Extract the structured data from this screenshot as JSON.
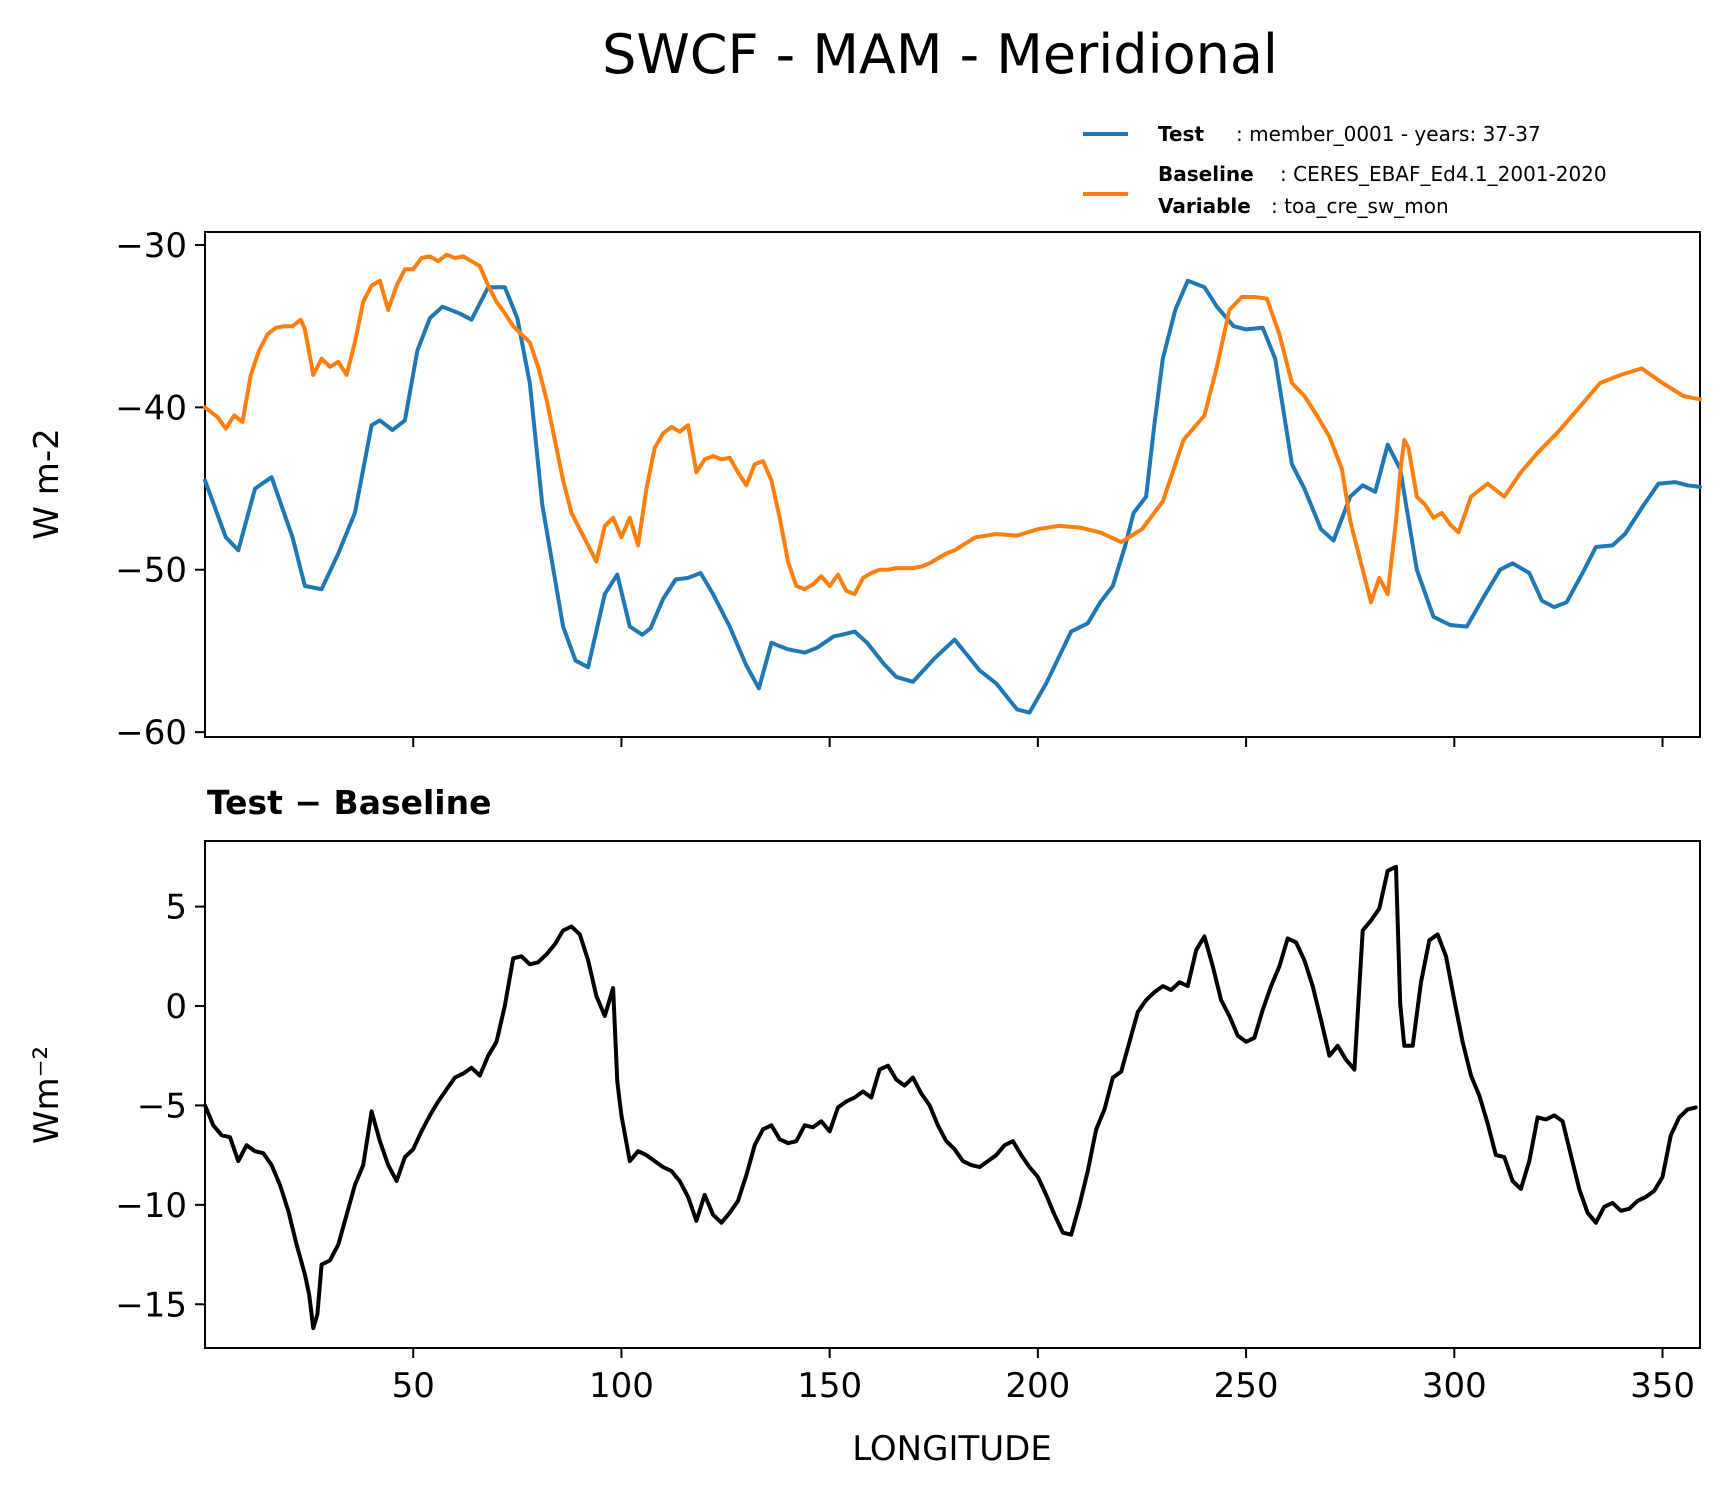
{
  "chart_data": [
    {
      "type": "line",
      "title": "SWCF - MAM - Meridional",
      "xlabel": "",
      "ylabel": "W m-2",
      "xlim": [
        0,
        359
      ],
      "ylim": [
        -60.3,
        -29.2
      ],
      "yticks": [
        -30,
        -40,
        -50,
        -60
      ],
      "ytick_labels": [
        "−30",
        "−40",
        "−50",
        "−60"
      ],
      "xticks": [
        50,
        100,
        150,
        200,
        250,
        300,
        350
      ],
      "legend": [
        {
          "key": "Test",
          "text": "member_0001 - years: 37-37",
          "color": "#1f77b4"
        },
        {
          "key": "Baseline",
          "text": "CERES_EBAF_Ed4.1_2001-2020",
          "color": "#ff7f0e"
        },
        {
          "key": "Variable",
          "text": "toa_cre_sw_mon",
          "color": ""
        }
      ],
      "series": [
        {
          "name": "Test",
          "color": "#1f77b4",
          "x": [
            0,
            5,
            8,
            12,
            16,
            21,
            24,
            28,
            32,
            36,
            40,
            42,
            45,
            48,
            51,
            54,
            57,
            61,
            64,
            68,
            72,
            75,
            78,
            81,
            86,
            89,
            92,
            96,
            99,
            102,
            105,
            107,
            110,
            113,
            116,
            119,
            122,
            126,
            130,
            133,
            136,
            140,
            144,
            147,
            151,
            153,
            156,
            159,
            163,
            166,
            170,
            175,
            180,
            186,
            190,
            195,
            198,
            202,
            208,
            212,
            215,
            218,
            221,
            223,
            226,
            228,
            230,
            233,
            236,
            240,
            243,
            247,
            250,
            254,
            257,
            261,
            264,
            268,
            271,
            275,
            278,
            281,
            284,
            287,
            291,
            295,
            299,
            303,
            307,
            311,
            314,
            318,
            321,
            324,
            327,
            331,
            334,
            338,
            341,
            345,
            349,
            353,
            356,
            359
          ],
          "y": [
            -44.5,
            -48,
            -48.8,
            -45,
            -44.3,
            -48,
            -51,
            -51.2,
            -49,
            -46.5,
            -41.1,
            -40.8,
            -41.4,
            -40.8,
            -36.5,
            -34.5,
            -33.8,
            -34.2,
            -34.6,
            -32.6,
            -32.6,
            -34.5,
            -38.5,
            -46,
            -53.5,
            -55.6,
            -56,
            -51.5,
            -50.3,
            -53.5,
            -54,
            -53.6,
            -51.8,
            -50.6,
            -50.5,
            -50.2,
            -51.5,
            -53.5,
            -55.9,
            -57.3,
            -54.5,
            -54.9,
            -55.1,
            -54.8,
            -54.1,
            -54,
            -53.8,
            -54.5,
            -55.8,
            -56.6,
            -56.9,
            -55.5,
            -54.3,
            -56.2,
            -57,
            -58.6,
            -58.8,
            -57,
            -53.8,
            -53.3,
            -52,
            -51,
            -48.5,
            -46.5,
            -45.5,
            -41,
            -37,
            -34,
            -32.2,
            -32.6,
            -33.8,
            -35,
            -35.2,
            -35.1,
            -37,
            -43.5,
            -45,
            -47.5,
            -48.2,
            -45.5,
            -44.8,
            -45.2,
            -42.3,
            -43.8,
            -50,
            -52.9,
            -53.4,
            -53.5,
            -51.7,
            -50,
            -49.6,
            -50.2,
            -51.9,
            -52.3,
            -52,
            -50.1,
            -48.6,
            -48.5,
            -47.8,
            -46.2,
            -44.7,
            -44.6,
            -44.8,
            -44.9
          ],
          "description": "Test series"
        },
        {
          "name": "Baseline",
          "color": "#ff7f0e",
          "x": [
            0,
            3,
            5,
            7,
            9,
            11,
            13,
            15,
            17,
            19,
            21,
            23,
            24,
            26,
            28,
            30,
            32,
            34,
            36,
            38,
            40,
            42,
            44,
            46,
            48,
            50,
            52,
            54,
            56,
            58,
            60,
            62,
            64,
            66,
            68,
            70,
            72,
            74,
            76,
            78,
            80,
            82,
            84,
            86,
            88,
            90,
            92,
            94,
            96,
            98,
            100,
            102,
            104,
            106,
            108,
            110,
            112,
            114,
            116,
            118,
            120,
            122,
            124,
            126,
            128,
            130,
            132,
            134,
            136,
            138,
            140,
            142,
            144,
            146,
            148,
            150,
            152,
            154,
            156,
            158,
            160,
            162,
            164,
            166,
            168,
            170,
            172,
            174,
            176,
            178,
            180,
            185,
            190,
            195,
            200,
            205,
            210,
            215,
            220,
            225,
            230,
            235,
            240,
            243,
            246,
            249,
            252,
            255,
            258,
            261,
            264,
            267,
            270,
            273,
            275,
            278,
            280,
            282,
            284,
            286,
            287,
            288,
            289,
            291,
            293,
            295,
            297,
            299,
            301,
            304,
            308,
            312,
            316,
            320,
            325,
            330,
            335,
            340,
            345,
            350,
            355,
            359
          ],
          "y": [
            -40,
            -40.6,
            -41.3,
            -40.5,
            -40.9,
            -38,
            -36.5,
            -35.5,
            -35.1,
            -35,
            -35,
            -34.6,
            -35.2,
            -38,
            -37,
            -37.5,
            -37.2,
            -38,
            -36,
            -33.5,
            -32.5,
            -32.2,
            -34,
            -32.5,
            -31.5,
            -31.5,
            -30.8,
            -30.7,
            -31,
            -30.6,
            -30.8,
            -30.7,
            -31,
            -31.3,
            -32.5,
            -33.5,
            -34.2,
            -35,
            -35.5,
            -36,
            -37.5,
            -39.5,
            -42,
            -44.5,
            -46.5,
            -47.5,
            -48.5,
            -49.5,
            -47.3,
            -46.8,
            -48,
            -46.8,
            -48.5,
            -45,
            -42.5,
            -41.6,
            -41.2,
            -41.5,
            -41.1,
            -44,
            -43.2,
            -43,
            -43.2,
            -43.1,
            -44,
            -44.8,
            -43.5,
            -43.3,
            -44.5,
            -46.8,
            -49.5,
            -51,
            -51.2,
            -50.9,
            -50.4,
            -51,
            -50.3,
            -51.3,
            -51.5,
            -50.5,
            -50.2,
            -50,
            -50,
            -49.9,
            -49.9,
            -49.9,
            -49.8,
            -49.6,
            -49.3,
            -49,
            -48.8,
            -48,
            -47.8,
            -47.9,
            -47.5,
            -47.3,
            -47.4,
            -47.7,
            -48.3,
            -47.5,
            -45.8,
            -42,
            -40.5,
            -37.5,
            -34,
            -33.2,
            -33.2,
            -33.3,
            -35.5,
            -38.5,
            -39.3,
            -40.5,
            -41.8,
            -43.8,
            -47,
            -50,
            -52,
            -50.5,
            -51.5,
            -47,
            -44,
            -42,
            -42.5,
            -45.5,
            -46,
            -46.8,
            -46.5,
            -47.2,
            -47.7,
            -45.5,
            -44.7,
            -45.5,
            -44,
            -42.8,
            -41.5,
            -40,
            -38.5,
            -38,
            -37.6,
            -38.5,
            -39.3,
            -39.5
          ],
          "description": "Baseline series"
        }
      ]
    },
    {
      "type": "line",
      "title": "Test − Baseline",
      "xlabel": "LONGITUDE",
      "ylabel": "Wm⁻²",
      "xlim": [
        0,
        359
      ],
      "ylim": [
        -17.2,
        8.3
      ],
      "yticks": [
        5,
        0,
        -5,
        -10,
        -15
      ],
      "ytick_labels": [
        "5",
        "0",
        "−5",
        "−10",
        "−15"
      ],
      "xticks": [
        50,
        100,
        150,
        200,
        250,
        300,
        350
      ],
      "xtick_labels": [
        "50",
        "100",
        "150",
        "200",
        "250",
        "300",
        "350"
      ],
      "series": [
        {
          "name": "Test - Baseline",
          "color": "#000000",
          "x": [
            0,
            2,
            4,
            6,
            8,
            10,
            12,
            14,
            16,
            18,
            20,
            22,
            24,
            25,
            26,
            27,
            28,
            30,
            32,
            34,
            36,
            38,
            40,
            42,
            44,
            46,
            48,
            50,
            52,
            54,
            56,
            58,
            60,
            62,
            64,
            66,
            68,
            70,
            72,
            74,
            76,
            78,
            80,
            82,
            84,
            86,
            88,
            90,
            92,
            94,
            96,
            98,
            99,
            100,
            102,
            104,
            106,
            108,
            110,
            112,
            114,
            116,
            118,
            120,
            122,
            124,
            126,
            128,
            130,
            132,
            134,
            136,
            138,
            140,
            142,
            144,
            146,
            148,
            150,
            152,
            154,
            156,
            158,
            160,
            162,
            164,
            166,
            168,
            170,
            172,
            174,
            176,
            178,
            180,
            182,
            184,
            186,
            188,
            190,
            192,
            194,
            196,
            198,
            200,
            202,
            204,
            206,
            208,
            210,
            212,
            214,
            216,
            218,
            220,
            222,
            224,
            226,
            228,
            230,
            232,
            234,
            236,
            238,
            240,
            242,
            244,
            246,
            248,
            250,
            252,
            254,
            256,
            258,
            260,
            262,
            264,
            266,
            268,
            270,
            272,
            274,
            276,
            278,
            280,
            282,
            284,
            286,
            287,
            288,
            290,
            292,
            294,
            296,
            298,
            300,
            302,
            304,
            306,
            308,
            310,
            312,
            314,
            316,
            318,
            320,
            322,
            324,
            326,
            328,
            330,
            332,
            334,
            336,
            338,
            340,
            342,
            344,
            346,
            348,
            350,
            352,
            354,
            356,
            358
          ],
          "y": [
            -5,
            -6,
            -6.5,
            -6.6,
            -7.8,
            -7,
            -7.3,
            -7.4,
            -8,
            -9,
            -10.3,
            -12,
            -13.5,
            -14.5,
            -16.2,
            -15.5,
            -13,
            -12.8,
            -12,
            -10.5,
            -9,
            -8,
            -5.3,
            -6.8,
            -8,
            -8.8,
            -7.6,
            -7.2,
            -6.3,
            -5.5,
            -4.8,
            -4.2,
            -3.6,
            -3.4,
            -3.1,
            -3.5,
            -2.5,
            -1.8,
            0,
            2.4,
            2.5,
            2.1,
            2.2,
            2.6,
            3.1,
            3.8,
            4,
            3.6,
            2.3,
            0.5,
            -0.5,
            0.9,
            -3.8,
            -5.5,
            -7.8,
            -7.3,
            -7.5,
            -7.8,
            -8.1,
            -8.3,
            -8.8,
            -9.6,
            -10.8,
            -9.5,
            -10.5,
            -10.9,
            -10.4,
            -9.8,
            -8.5,
            -7,
            -6.2,
            -6,
            -6.7,
            -6.9,
            -6.8,
            -6,
            -6.1,
            -5.8,
            -6.3,
            -5.1,
            -4.8,
            -4.6,
            -4.3,
            -4.6,
            -3.2,
            -3,
            -3.7,
            -4,
            -3.6,
            -4.4,
            -5,
            -6,
            -6.8,
            -7.2,
            -7.8,
            -8,
            -8.1,
            -7.8,
            -7.5,
            -7,
            -6.8,
            -7.5,
            -8.1,
            -8.6,
            -9.5,
            -10.5,
            -11.4,
            -11.5,
            -10,
            -8.3,
            -6.2,
            -5.2,
            -3.6,
            -3.3,
            -1.8,
            -0.3,
            0.3,
            0.7,
            1,
            0.8,
            1.2,
            1,
            2.8,
            3.5,
            2,
            0.3,
            -0.5,
            -1.5,
            -1.8,
            -1.6,
            -0.2,
            1,
            2,
            3.4,
            3.2,
            2.3,
            1,
            -0.7,
            -2.5,
            -2,
            -2.7,
            -3.2,
            3.8,
            4.3,
            4.9,
            6.8,
            7,
            0.1,
            -2,
            -2,
            1.2,
            3.3,
            3.6,
            2.5,
            0.3,
            -1.8,
            -3.5,
            -4.5,
            -5.9,
            -7.5,
            -7.6,
            -8.8,
            -9.2,
            -7.8,
            -5.6,
            -5.7,
            -5.5,
            -5.8,
            -7.5,
            -9.2,
            -10.4,
            -10.9,
            -10.1,
            -9.9,
            -10.3,
            -10.2,
            -9.8,
            -9.6,
            -9.3,
            -8.6,
            -6.5,
            -5.6,
            -5.2,
            -5.1
          ],
          "description": "Test - Baseline difference"
        }
      ]
    }
  ]
}
